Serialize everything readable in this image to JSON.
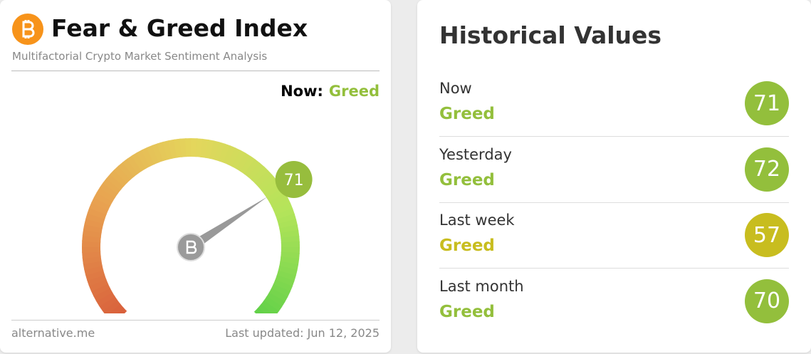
{
  "widget": {
    "title": "Fear & Greed Index",
    "subtitle": "Multifactorial Crypto Market Sentiment Analysis",
    "now_label": "Now:",
    "now_class": "Greed",
    "now_color": "#93bf3c",
    "gauge_value": 71,
    "gauge_color": "#97bd3d",
    "source": "alternative.me",
    "updated": "Last updated: Jun 12, 2025"
  },
  "history": {
    "title": "Historical Values",
    "rows": [
      {
        "label": "Now",
        "class": "Greed",
        "value": 71,
        "color": "#93bf3c"
      },
      {
        "label": "Yesterday",
        "class": "Greed",
        "value": 72,
        "color": "#93bf3c"
      },
      {
        "label": "Last week",
        "class": "Greed",
        "value": 57,
        "color": "#c8bd1f"
      },
      {
        "label": "Last month",
        "class": "Greed",
        "value": 70,
        "color": "#93bf3c"
      }
    ]
  }
}
